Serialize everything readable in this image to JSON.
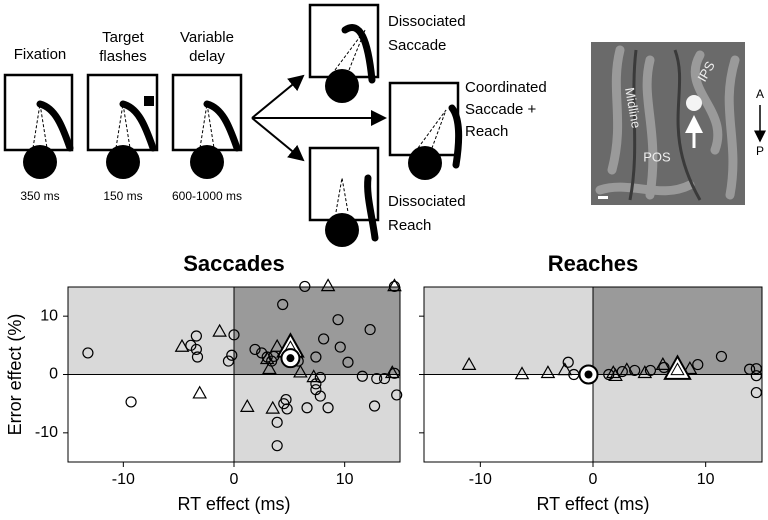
{
  "diagram": {
    "stages": [
      {
        "lines": [
          "Fixation"
        ],
        "duration": "350 ms"
      },
      {
        "lines": [
          "Target",
          "flashes"
        ],
        "duration": "150 ms"
      },
      {
        "lines": [
          "Variable",
          "delay"
        ],
        "duration": "600-1000 ms"
      }
    ],
    "outcomes": [
      {
        "lines": [
          "Dissociated",
          "Saccade"
        ]
      },
      {
        "lines": [
          "Coordinated",
          "Saccade +",
          "Reach"
        ]
      },
      {
        "lines": [
          "Dissociated",
          "Reach"
        ]
      }
    ],
    "brain": {
      "labels": [
        "Midline",
        "IPS",
        "POS"
      ],
      "orientation": [
        "A",
        "P"
      ]
    }
  },
  "chart_data": [
    {
      "type": "scatter",
      "title": "Saccades",
      "xlabel": "RT effect (ms)",
      "ylabel": "Error effect (%)",
      "xlim": [
        -15,
        15
      ],
      "ylim": [
        -15,
        15
      ],
      "xticks": [
        -10,
        0,
        10
      ],
      "yticks": [
        -10,
        0,
        10
      ],
      "series": [
        {
          "marker": "circle",
          "x": [
            -13.2,
            -9.3,
            -3.9,
            -3.4,
            -3.4,
            -3.3,
            0,
            -0.2,
            -0.5,
            6.4,
            4.4,
            1.9,
            2.5,
            3.0,
            3.4,
            3.6,
            3.9,
            3.9,
            4.5,
            4.8,
            4.7,
            5.8,
            7.4,
            8.1,
            7.4,
            7.8,
            7.4,
            7.8,
            6.6,
            8.5,
            9.4,
            9.6,
            10.3,
            12.3,
            12.7,
            11.6,
            12.9,
            13.6,
            14.5,
            14.5,
            14.7
          ],
          "values": [
            3.7,
            -4.7,
            5.0,
            6.6,
            4.3,
            3.0,
            6.8,
            3.3,
            2.3,
            15.1,
            12.0,
            4.3,
            3.7,
            3.0,
            2.3,
            3.1,
            -8.2,
            -12.2,
            -5.0,
            -5.9,
            -4.3,
            2.3,
            3.0,
            6.1,
            -1.6,
            -0.5,
            -2.6,
            -3.7,
            -5.7,
            -5.7,
            9.4,
            4.7,
            2.1,
            7.7,
            -5.4,
            -0.3,
            -0.7,
            -0.7,
            15.1,
            0.2,
            -3.5
          ]
        },
        {
          "marker": "triangle",
          "x": [
            -4.7,
            -1.3,
            -3.1,
            1.2,
            3.5,
            3.0,
            3.2,
            3.9,
            6.0,
            7.2,
            8.5,
            14.5,
            14.3
          ],
          "values": [
            4.7,
            7.3,
            -3.3,
            -5.6,
            -5.9,
            2.6,
            0.9,
            4.7,
            0.3,
            -0.5,
            15.1,
            15.1,
            0.2
          ]
        },
        {
          "marker": "triangle",
          "highlight": true,
          "x": [
            5.1
          ],
          "values": [
            4.5
          ]
        },
        {
          "marker": "circle",
          "highlight": true,
          "x": [
            5.1
          ],
          "values": [
            2.8
          ]
        }
      ]
    },
    {
      "type": "scatter",
      "title": "Reaches",
      "xlabel": "RT effect (ms)",
      "xlim": [
        -15,
        15
      ],
      "ylim": [
        -15,
        15
      ],
      "xticks": [
        -10,
        0,
        10
      ],
      "yticks": [
        -10,
        0,
        10
      ],
      "series": [
        {
          "marker": "circle",
          "x": [
            -2.2,
            -1.7,
            1.4,
            2.6,
            3.7,
            5.1,
            6.3,
            7.5,
            9.3,
            11.4,
            13.9,
            14.5,
            14.5,
            14.5
          ],
          "values": [
            2.1,
            0,
            0,
            0.5,
            0.7,
            0.7,
            1.2,
            1.0,
            1.7,
            3.1,
            0.9,
            1.0,
            -0.2,
            -3.1
          ]
        },
        {
          "marker": "triangle",
          "x": [
            -11.0,
            -6.3,
            -4.0,
            -2.5,
            1.8,
            2.0,
            3.0,
            4.6,
            6.2,
            8.6
          ],
          "values": [
            1.6,
            0,
            0.2,
            0.7,
            0.2,
            -0.3,
            0.7,
            0.2,
            1.6,
            0.9
          ]
        },
        {
          "marker": "circle",
          "highlight": true,
          "x": [
            -0.4
          ],
          "values": [
            0
          ]
        },
        {
          "marker": "triangle",
          "highlight": true,
          "x": [
            7.5
          ],
          "values": [
            0.7
          ]
        }
      ]
    }
  ]
}
